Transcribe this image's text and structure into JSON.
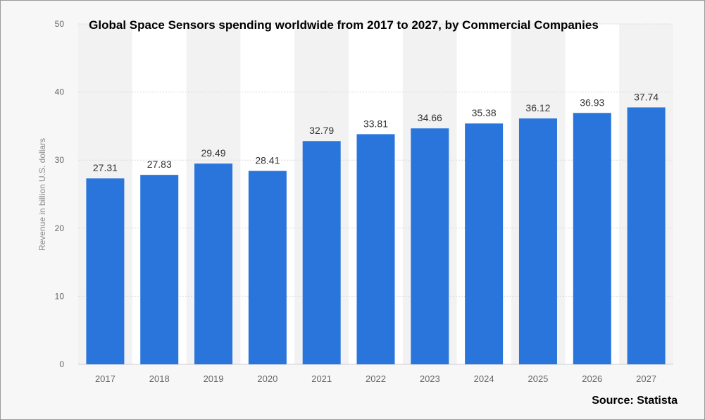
{
  "source_label": "Source: Statista",
  "chart_data": {
    "type": "bar",
    "title": "Global Space Sensors spending worldwide from 2017 to 2027, by Commercial Companies",
    "xlabel": "",
    "ylabel": "Revenue in billion U.S. dollars",
    "categories": [
      "2017",
      "2018",
      "2019",
      "2020",
      "2021",
      "2022",
      "2023",
      "2024",
      "2025",
      "2026",
      "2027"
    ],
    "values": [
      27.31,
      27.83,
      29.49,
      28.41,
      32.79,
      33.81,
      34.66,
      35.38,
      36.12,
      36.93,
      37.74
    ],
    "value_labels": [
      "27.31",
      "27.83",
      "29.49",
      "28.41",
      "32.79",
      "33.81",
      "34.66",
      "35.38",
      "36.12",
      "36.93",
      "37.74"
    ],
    "ylim": [
      0,
      50
    ],
    "yticks": [
      0,
      10,
      20,
      30,
      40,
      50
    ],
    "ytick_labels": [
      "0",
      "10",
      "20",
      "30",
      "40",
      "50"
    ],
    "grid": true,
    "legend": "none",
    "bar_color": "#2a75dc"
  }
}
